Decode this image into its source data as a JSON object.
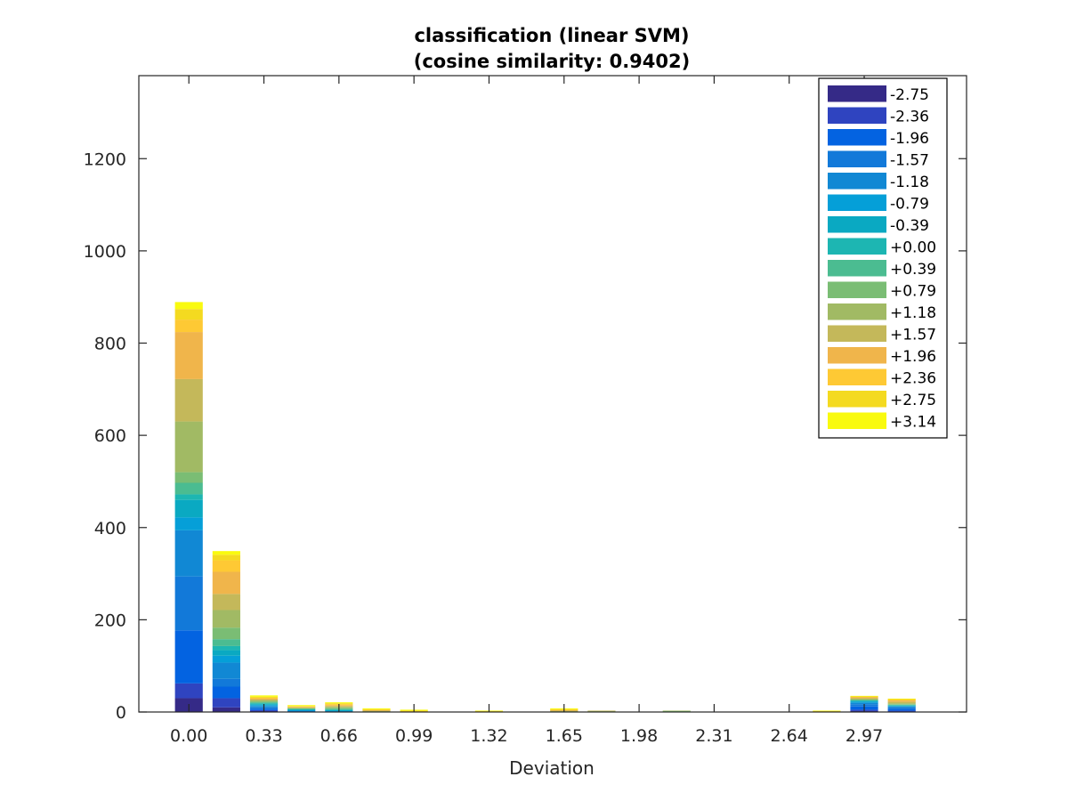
{
  "chart_data": {
    "type": "bar",
    "stacked": true,
    "title": "classification (linear SVM)",
    "subtitle": "(cosine similarity: 0.9402)",
    "xlabel": "Deviation",
    "ylabel": "",
    "xlim": [
      -0.22,
      3.42
    ],
    "ylim": [
      0,
      1380
    ],
    "x_tick_values": [
      0.0,
      0.33,
      0.66,
      0.99,
      1.32,
      1.65,
      1.98,
      2.31,
      2.64,
      2.97
    ],
    "x_tick_labels": [
      "0.00",
      "0.33",
      "0.66",
      "0.99",
      "1.32",
      "1.65",
      "1.98",
      "2.31",
      "2.64",
      "2.97"
    ],
    "y_ticks": [
      0,
      200,
      400,
      600,
      800,
      1000,
      1200
    ],
    "y_tick_labels": [
      "0",
      "200",
      "400",
      "600",
      "800",
      "1000",
      "1200"
    ],
    "grid": false,
    "legend_position": "top-right",
    "x": [
      0.0,
      0.165,
      0.33,
      0.495,
      0.66,
      0.825,
      0.99,
      1.155,
      1.32,
      1.485,
      1.65,
      1.815,
      1.98,
      2.145,
      2.31,
      2.475,
      2.64,
      2.805,
      2.97,
      3.135
    ],
    "series": [
      {
        "name": "-2.75",
        "color": "#352a87",
        "values": [
          30,
          10,
          2,
          0,
          0,
          0,
          0,
          0,
          0,
          0,
          0,
          0,
          0,
          0,
          0,
          0,
          0,
          0,
          2,
          1
        ]
      },
      {
        "name": "-2.36",
        "color": "#2f44c0",
        "values": [
          32,
          20,
          2,
          0,
          0,
          0,
          0,
          0,
          0,
          0,
          0,
          0,
          0,
          0,
          0,
          0,
          0,
          0,
          3,
          2
        ]
      },
      {
        "name": "-1.96",
        "color": "#0363e1",
        "values": [
          115,
          25,
          3,
          1,
          0,
          0,
          0,
          0,
          0,
          0,
          0,
          0,
          0,
          0,
          0,
          0,
          0,
          0,
          7,
          4
        ]
      },
      {
        "name": "-1.57",
        "color": "#1279d9",
        "values": [
          117,
          17,
          3,
          1,
          1,
          0,
          0,
          0,
          0,
          0,
          0,
          0,
          0,
          0,
          0,
          0,
          0,
          0,
          5,
          3
        ]
      },
      {
        "name": "-1.18",
        "color": "#1188d4",
        "values": [
          100,
          35,
          3,
          1,
          1,
          0,
          0,
          0,
          0,
          0,
          0,
          0,
          0,
          0,
          0,
          0,
          0,
          0,
          3,
          2
        ]
      },
      {
        "name": "-0.79",
        "color": "#059fd8",
        "values": [
          28,
          15,
          2,
          1,
          1,
          0,
          0,
          0,
          0,
          0,
          0,
          0,
          0,
          0,
          0,
          0,
          0,
          0,
          2,
          1
        ]
      },
      {
        "name": "-0.39",
        "color": "#0aa9c2",
        "values": [
          38,
          12,
          2,
          1,
          1,
          0,
          0,
          0,
          0,
          0,
          0,
          0,
          0,
          0,
          0,
          0,
          0,
          0,
          2,
          1
        ]
      },
      {
        "name": "+0.00",
        "color": "#1db6b2",
        "values": [
          12,
          9,
          2,
          1,
          1,
          0,
          0,
          0,
          0,
          0,
          0,
          0,
          0,
          0,
          0,
          0,
          0,
          0,
          1,
          1
        ]
      },
      {
        "name": "+0.39",
        "color": "#4bbc91",
        "values": [
          25,
          15,
          2,
          1,
          2,
          0,
          0,
          0,
          0,
          0,
          0,
          0,
          0,
          1,
          0,
          0,
          0,
          0,
          1,
          1
        ]
      },
      {
        "name": "+0.79",
        "color": "#7abd74",
        "values": [
          23,
          25,
          2,
          1,
          2,
          1,
          0,
          0,
          0,
          0,
          1,
          1,
          0,
          1,
          0,
          0,
          0,
          0,
          1,
          1
        ]
      },
      {
        "name": "+1.18",
        "color": "#a1ba64",
        "values": [
          110,
          38,
          2,
          1,
          2,
          1,
          0,
          0,
          0,
          0,
          1,
          1,
          0,
          1,
          0,
          0,
          0,
          0,
          1,
          2
        ]
      },
      {
        "name": "+1.57",
        "color": "#c4b85a",
        "values": [
          92,
          35,
          2,
          1,
          2,
          1,
          0,
          0,
          0,
          0,
          1,
          1,
          0,
          0,
          0,
          0,
          0,
          0,
          2,
          3
        ]
      },
      {
        "name": "+1.96",
        "color": "#f0b54b",
        "values": [
          102,
          48,
          2,
          1,
          2,
          1,
          1,
          0,
          0,
          0,
          1,
          0,
          0,
          0,
          0,
          0,
          0,
          0,
          2,
          3
        ]
      },
      {
        "name": "+2.36",
        "color": "#fec934",
        "values": [
          27,
          25,
          2,
          1,
          2,
          1,
          1,
          0,
          1,
          0,
          1,
          0,
          0,
          0,
          0,
          0,
          0,
          1,
          1,
          2
        ]
      },
      {
        "name": "+2.75",
        "color": "#f4da20",
        "values": [
          23,
          12,
          2,
          1,
          2,
          1,
          1,
          0,
          1,
          0,
          1,
          0,
          0,
          0,
          0,
          0,
          0,
          1,
          1,
          1
        ]
      },
      {
        "name": "+3.14",
        "color": "#f9fa0f",
        "values": [
          15,
          8,
          3,
          2,
          2,
          2,
          2,
          0,
          1,
          0,
          2,
          0,
          0,
          0,
          0,
          0,
          0,
          1,
          1,
          1
        ]
      }
    ]
  }
}
